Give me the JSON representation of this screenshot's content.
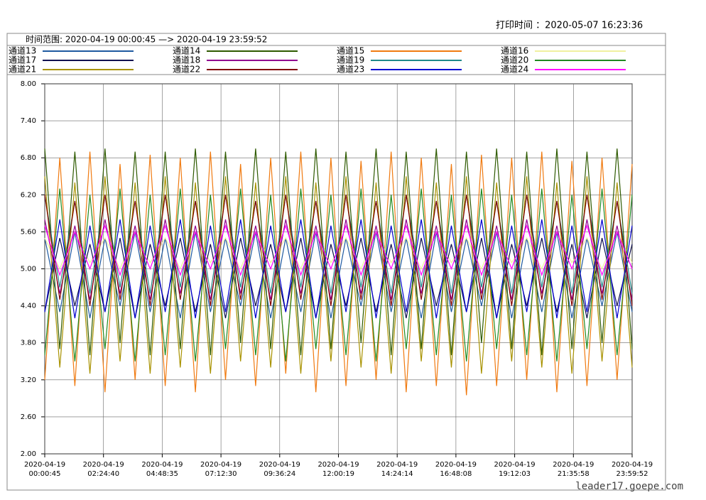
{
  "chart_data": {
    "type": "line",
    "print_time": "打印时间 ：2020-05-07  16:23:36",
    "time_range": "时间范围: 2020-04-19 00:00:45 —> 2020-04-19 23:59:52",
    "watermark": "leader17.goepe.com",
    "xlim": [
      "2020-04-19\n00:00:45",
      "2020-04-19\n23:59:52"
    ],
    "xticks": [
      "2020-04-19\n00:00:45",
      "2020-04-19\n02:24:40",
      "2020-04-19\n04:48:35",
      "2020-04-19\n07:12:30",
      "2020-04-19\n09:36:24",
      "2020-04-19\n12:00:19",
      "2020-04-19\n14:24:14",
      "2020-04-19\n16:48:08",
      "2020-04-19\n19:12:03",
      "2020-04-19\n21:35:58",
      "2020-04-19\n23:59:52"
    ],
    "ylim": [
      2,
      8
    ],
    "yticks": [
      {
        "value": 2,
        "label": "2.00"
      },
      {
        "value": 2.6,
        "label": "2.60"
      },
      {
        "value": 3.2,
        "label": "3.20"
      },
      {
        "value": 3.8,
        "label": "3.80"
      },
      {
        "value": 4.4,
        "label": "4.40"
      },
      {
        "value": 5,
        "label": "5.00"
      },
      {
        "value": 5.6,
        "label": "5.60"
      },
      {
        "value": 6.2,
        "label": "6.20"
      },
      {
        "value": 6.8,
        "label": "6.80"
      },
      {
        "value": 7.4,
        "label": "7.40"
      },
      {
        "value": 8,
        "label": "8.00"
      }
    ],
    "grid": true,
    "series": [
      {
        "name": "通道13",
        "color": "#1f5aa0",
        "values": [
          5.5,
          4.3,
          5.6,
          4.2,
          5.5,
          4.4,
          5.6,
          4.3,
          5.5,
          4.2,
          5.6,
          4.3,
          5.5,
          4.4,
          5.6,
          4.2,
          5.5,
          4.3,
          5.6,
          4.2,
          5.5,
          4.4,
          5.6,
          4.3,
          5.5,
          4.2,
          5.6,
          4.3,
          5.5,
          4.4,
          5.6,
          4.2,
          5.5,
          4.3,
          5.6,
          4.2,
          5.5,
          4.4,
          5.6,
          4.3
        ]
      },
      {
        "name": "通道14",
        "color": "#2e5a00",
        "values": [
          6.95,
          3.7,
          6.9,
          3.6,
          6.95,
          3.8,
          6.9,
          3.6,
          6.9,
          3.7,
          6.95,
          3.6,
          6.9,
          3.8,
          6.95,
          3.7,
          6.9,
          3.6,
          6.95,
          3.7,
          6.9,
          3.8,
          6.95,
          3.6,
          6.9,
          3.7,
          6.95,
          3.6,
          6.9,
          3.8,
          6.95,
          3.7,
          6.9,
          3.6,
          6.95,
          3.7,
          6.9,
          3.8,
          6.95,
          3.7
        ]
      },
      {
        "name": "通道15",
        "color": "#f07a10",
        "values": [
          3.2,
          6.8,
          3.1,
          6.9,
          3.0,
          6.7,
          3.2,
          6.85,
          3.1,
          6.8,
          3.0,
          6.9,
          3.2,
          6.7,
          3.1,
          6.8,
          3.3,
          6.9,
          3.0,
          6.8,
          3.1,
          6.75,
          3.2,
          6.9,
          3.0,
          6.8,
          3.1,
          6.7,
          2.95,
          6.85,
          3.1,
          6.8,
          3.2,
          6.9,
          3.0,
          6.75,
          3.1,
          6.8,
          3.2,
          6.7
        ]
      },
      {
        "name": "通道16",
        "color": "#f0f0a0",
        "values": [
          5.5,
          5.0,
          5.6,
          5.1,
          5.5,
          5.0,
          5.6,
          5.1,
          5.5,
          5.0,
          5.6,
          5.1,
          5.5,
          5.0,
          5.6,
          5.1,
          5.5,
          5.0,
          5.6,
          5.1,
          5.5,
          5.0,
          5.6,
          5.1,
          5.5,
          5.0,
          5.6,
          5.1,
          5.5,
          5.0,
          5.6,
          5.1,
          5.5,
          5.0,
          5.6,
          5.1,
          5.5,
          5.0,
          5.6,
          5.1
        ]
      },
      {
        "name": "通道17",
        "color": "#101050",
        "values": [
          4.3,
          5.5,
          4.4,
          5.4,
          4.3,
          5.5,
          4.2,
          5.4,
          4.4,
          5.5,
          4.3,
          5.4,
          4.2,
          5.5,
          4.4,
          5.4,
          4.3,
          5.5,
          4.2,
          5.4,
          4.4,
          5.5,
          4.3,
          5.4,
          4.2,
          5.5,
          4.4,
          5.4,
          4.3,
          5.5,
          4.2,
          5.4,
          4.4,
          5.5,
          4.3,
          5.4,
          4.2,
          5.5,
          4.4,
          5.4
        ]
      },
      {
        "name": "通道18",
        "color": "#900090",
        "values": [
          5.8,
          4.6,
          5.7,
          4.5,
          5.8,
          4.6,
          5.7,
          4.5,
          5.8,
          4.6,
          5.7,
          4.5,
          5.8,
          4.6,
          5.7,
          4.5,
          5.8,
          4.6,
          5.7,
          4.5,
          5.8,
          4.6,
          5.7,
          4.5,
          5.8,
          4.6,
          5.7,
          4.5,
          5.8,
          4.6,
          5.7,
          4.5,
          5.8,
          4.6,
          5.7,
          4.5,
          5.8,
          4.6,
          5.7,
          4.5
        ]
      },
      {
        "name": "通道19",
        "color": "#208a8a",
        "values": [
          6.2,
          4.7,
          6.1,
          4.6,
          6.2,
          4.7,
          6.1,
          4.6,
          6.2,
          4.7,
          6.1,
          4.6,
          6.2,
          4.7,
          6.1,
          4.6,
          6.2,
          4.7,
          6.1,
          4.6,
          6.2,
          4.7,
          6.1,
          4.6,
          6.2,
          4.7,
          6.1,
          4.6,
          6.2,
          4.7,
          6.1,
          4.6,
          6.2,
          4.7,
          6.1,
          4.6,
          6.2,
          4.7,
          6.1,
          4.6
        ]
      },
      {
        "name": "通道20",
        "color": "#208a20",
        "values": [
          3.6,
          6.3,
          3.5,
          6.2,
          3.7,
          6.3,
          3.5,
          6.2,
          3.6,
          6.3,
          3.5,
          6.2,
          3.7,
          6.3,
          3.6,
          6.2,
          3.5,
          6.3,
          3.7,
          6.2,
          3.6,
          6.3,
          3.5,
          6.2,
          3.7,
          6.3,
          3.6,
          6.2,
          3.5,
          6.3,
          3.7,
          6.2,
          3.6,
          6.3,
          3.5,
          6.2,
          3.7,
          6.3,
          3.6,
          6.2
        ]
      },
      {
        "name": "通道21",
        "color": "#a89200",
        "values": [
          6.5,
          3.4,
          6.4,
          3.3,
          6.5,
          3.5,
          6.4,
          3.3,
          6.5,
          3.4,
          6.4,
          3.3,
          6.5,
          3.5,
          6.4,
          3.4,
          6.5,
          3.3,
          6.4,
          3.5,
          6.5,
          3.4,
          6.4,
          3.3,
          6.5,
          3.5,
          6.4,
          3.4,
          6.5,
          3.3,
          6.4,
          3.5,
          6.5,
          3.4,
          6.4,
          3.3,
          6.5,
          3.5,
          6.4,
          3.4
        ]
      },
      {
        "name": "通道22",
        "color": "#800000",
        "values": [
          6.2,
          4.5,
          6.1,
          4.4,
          6.2,
          4.5,
          6.1,
          4.4,
          6.2,
          4.5,
          6.1,
          4.4,
          6.2,
          4.5,
          6.1,
          4.4,
          6.2,
          4.5,
          6.1,
          4.4,
          6.2,
          4.5,
          6.1,
          4.4,
          6.2,
          4.5,
          6.1,
          4.4,
          6.2,
          4.5,
          6.1,
          4.4,
          6.2,
          4.5,
          6.1,
          4.4,
          6.2,
          4.5,
          6.1,
          4.4
        ]
      },
      {
        "name": "通道23",
        "color": "#0000d0",
        "values": [
          4.3,
          5.8,
          4.2,
          5.7,
          4.3,
          5.8,
          4.2,
          5.7,
          4.3,
          5.8,
          4.2,
          5.7,
          4.3,
          5.8,
          4.2,
          5.7,
          4.3,
          5.8,
          4.2,
          5.7,
          4.3,
          5.8,
          4.2,
          5.7,
          4.3,
          5.8,
          4.2,
          5.7,
          4.3,
          5.8,
          4.2,
          5.7,
          4.3,
          5.8,
          4.2,
          5.7,
          4.3,
          5.8,
          4.2,
          5.7
        ]
      },
      {
        "name": "通道24",
        "color": "#ff00ff",
        "values": [
          5.7,
          4.9,
          5.6,
          5.0,
          5.7,
          4.9,
          5.6,
          5.0,
          5.7,
          4.9,
          5.6,
          5.0,
          5.7,
          4.9,
          5.6,
          5.0,
          5.7,
          4.9,
          5.6,
          5.0,
          5.7,
          4.9,
          5.6,
          5.0,
          5.7,
          4.9,
          5.6,
          5.0,
          5.7,
          4.9,
          5.6,
          5.0,
          5.7,
          4.9,
          5.6,
          5.0,
          5.7,
          4.9,
          5.6,
          5.0
        ]
      }
    ]
  }
}
